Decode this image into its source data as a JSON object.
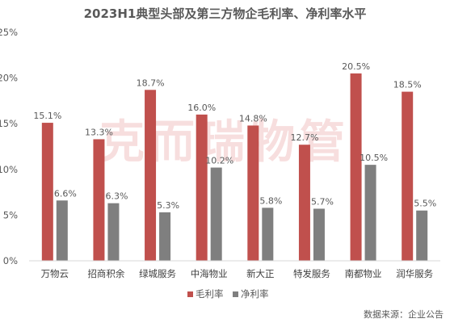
{
  "chart_data": {
    "type": "bar",
    "title": "2023H1典型头部及第三方物企毛利率、净利率水平",
    "categories": [
      "万物云",
      "招商积余",
      "绿城服务",
      "中海物业",
      "新大正",
      "特发服务",
      "南都物业",
      "润华服务"
    ],
    "series": [
      {
        "name": "毛利率",
        "color": "#c0504d",
        "values": [
          15.1,
          13.3,
          18.7,
          16.0,
          14.8,
          12.7,
          20.5,
          18.5
        ],
        "labels": [
          "15.1%",
          "13.3%",
          "18.7%",
          "16.0%",
          "14.8%",
          "12.7%",
          "20.5%",
          "18.5%"
        ]
      },
      {
        "name": "净利率",
        "color": "#7f7f7f",
        "values": [
          6.6,
          6.3,
          5.3,
          10.2,
          5.8,
          5.7,
          10.5,
          5.5
        ],
        "labels": [
          "6.6%",
          "6.3%",
          "5.3%",
          "10.2%",
          "5.8%",
          "5.7%",
          "10.5%",
          "5.5%"
        ]
      }
    ],
    "y_ticks": [
      "0%",
      "5%",
      "10%",
      "15%",
      "20%",
      "25%"
    ],
    "ylim": [
      0,
      25
    ],
    "grid": false,
    "legend": "bottom"
  },
  "watermark": "克而瑞物管",
  "source": "数据来源：企业公告"
}
